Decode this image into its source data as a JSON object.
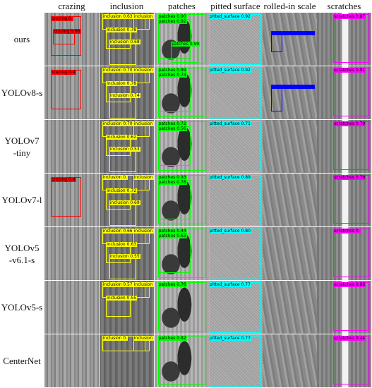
{
  "columns": [
    "crazing",
    "inclusion",
    "patches",
    "pitted surface",
    "rolled-in scale",
    "scratches"
  ],
  "rows": [
    {
      "label": [
        "ours"
      ]
    },
    {
      "label": [
        "YOLOv8-s"
      ]
    },
    {
      "label": [
        "YOLOv7",
        "-tiny"
      ]
    },
    {
      "label": [
        "YOLOv7-l"
      ]
    },
    {
      "label": [
        "YOLOv5",
        "-v6.1-s"
      ]
    },
    {
      "label": [
        "YOLOv5-s"
      ]
    },
    {
      "label": [
        "CenterNet"
      ]
    }
  ],
  "colors": {
    "crazing": "#ff0000",
    "inclusion": "#ffff00",
    "patches": "#00ff00",
    "pitted_surface": "#00ffff",
    "rolled_in_scale": "#0000ff",
    "scratches": "#ff00ff"
  },
  "detections": {
    "ours": {
      "crazing": [
        "crazing 0.",
        "crazing 0.66"
      ],
      "inclusion": [
        "inclusion 0.63",
        "inclusion 0.",
        "inclusion 0.78",
        "inclusion 0.68"
      ],
      "patches": [
        "patches 0.90",
        "patches 0.92",
        "patches 0.59"
      ],
      "pitted surface": [
        "pitted_surface 0.92"
      ],
      "rolled-in scale": [],
      "scratches": [
        "scratches 0.87"
      ]
    },
    "YOLOv8-s": {
      "crazing": [
        "crazing 0.4"
      ],
      "inclusion": [
        "inclusion 0.70",
        "inclusion 0.",
        "inclusion 0.78",
        "inclusion 0.74"
      ],
      "patches": [
        "patches 0.89",
        "patches 0.74"
      ],
      "pitted surface": [
        "pitted_surface 0.92"
      ],
      "rolled-in scale": [],
      "scratches": [
        "scratches 0.91"
      ]
    },
    "YOLOv7-tiny": {
      "crazing": [],
      "inclusion": [
        "inclusion 0.70",
        "inclusion 0.",
        "inclusion 0.62",
        "inclusion 0.53"
      ],
      "patches": [
        "patches 0.72",
        "patches 0.56"
      ],
      "pitted surface": [
        "pitted_surface 0.71"
      ],
      "rolled-in scale": [],
      "scratches": [
        "scratches 0.79"
      ]
    },
    "YOLOv7-l": {
      "crazing": [
        "crazing 0.4"
      ],
      "inclusion": [
        "inclusion 0.",
        "inclusion 0.",
        "inclusion 0.72",
        "inclusion 0.69"
      ],
      "patches": [
        "patches 0.93",
        "patches 0.78"
      ],
      "pitted surface": [
        "pitted_surface 0.89"
      ],
      "rolled-in scale": [],
      "scratches": [
        "scratches 0.79"
      ]
    },
    "YOLOv5-v6.1-s": {
      "crazing": [],
      "inclusion": [
        "inclusion 0.66",
        "inclusion 0.",
        "inclusion 0.63",
        "inclusion 0.55"
      ],
      "patches": [
        "patches 0.44",
        "patches 0.63"
      ],
      "pitted surface": [
        "pitted_surface 0.80"
      ],
      "rolled-in scale": [],
      "scratches": [
        "scratches 0."
      ]
    },
    "YOLOv5-s": {
      "crazing": [],
      "inclusion": [
        "inclusion 0.57",
        "inclusion 0.",
        "inclusion 0.55"
      ],
      "patches": [
        "patches 0.78"
      ],
      "pitted surface": [
        "pitted_surface 0.77"
      ],
      "rolled-in scale": [],
      "scratches": [
        "scratches 0.88"
      ]
    },
    "CenterNet": {
      "crazing": [],
      "inclusion": [
        "inclusion 0.",
        "inclusion 0.90"
      ],
      "patches": [
        "patches 0.82"
      ],
      "pitted surface": [
        "pitted_surface 0.77"
      ],
      "rolled-in scale": [],
      "scratches": [
        "scratches 0.44"
      ]
    }
  }
}
